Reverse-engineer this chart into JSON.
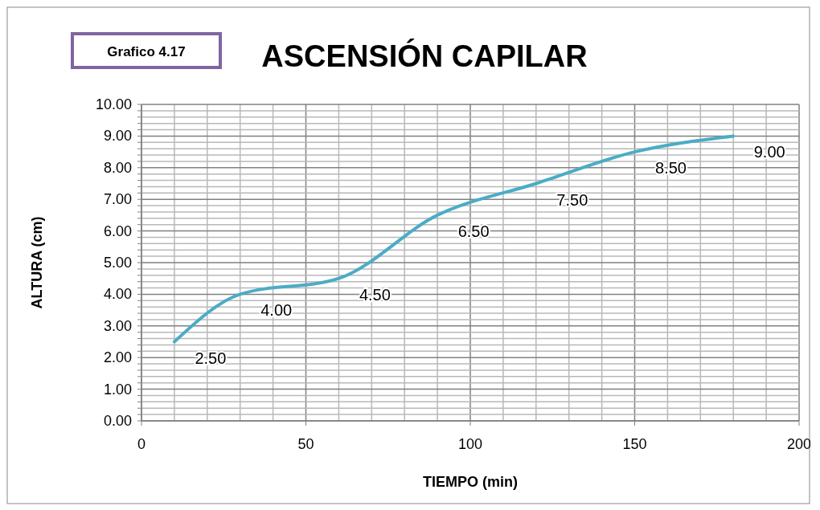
{
  "chart_data": {
    "type": "line",
    "title": "ASCENSIÓN CAPILAR",
    "xlabel": "TIEMPO (min)",
    "ylabel": "ALTURA (cm)",
    "annotations": [
      "Grafico 4.17"
    ],
    "x": [
      10,
      30,
      60,
      90,
      120,
      150,
      180
    ],
    "series": [
      {
        "color": "#4bacc6",
        "values": [
          2.5,
          4.0,
          4.5,
          6.5,
          7.5,
          8.5,
          9.0
        ]
      }
    ],
    "value_labels": [
      "2.50",
      "4.00",
      "4.50",
      "6.50",
      "7.50",
      "8.50",
      "9.00"
    ],
    "xlim": [
      0,
      200
    ],
    "xticks": [
      0,
      {
        "value": 10,
        "label": null
      },
      {
        "value": 20,
        "label": null
      },
      {
        "value": 30,
        "label": null
      },
      {
        "value": 40,
        "label": null
      },
      50,
      {
        "value": 60,
        "label": null
      },
      {
        "value": 70,
        "label": null
      },
      {
        "value": 80,
        "label": null
      },
      {
        "value": 90,
        "label": null
      },
      100,
      {
        "value": 110,
        "label": null
      },
      {
        "value": 120,
        "label": null
      },
      {
        "value": 130,
        "label": null
      },
      {
        "value": 140,
        "label": null
      },
      150,
      {
        "value": 160,
        "label": null
      },
      {
        "value": 170,
        "label": null
      },
      {
        "value": 180,
        "label": null
      },
      {
        "value": 190,
        "label": null
      },
      200
    ],
    "ylim": [
      0,
      10
    ],
    "yticks": [
      {
        "value": 0,
        "label": "0.00"
      },
      {
        "value": 0.2,
        "label": null
      },
      {
        "value": 0.4,
        "label": null
      },
      {
        "value": 0.6,
        "label": null
      },
      {
        "value": 0.8,
        "label": null
      },
      {
        "value": 1,
        "label": "1.00"
      },
      {
        "value": 1.2,
        "label": null
      },
      {
        "value": 1.4,
        "label": null
      },
      {
        "value": 1.6,
        "label": null
      },
      {
        "value": 1.8,
        "label": null
      },
      {
        "value": 2,
        "label": "2.00"
      },
      {
        "value": 2.2,
        "label": null
      },
      {
        "value": 2.4,
        "label": null
      },
      {
        "value": 2.6,
        "label": null
      },
      {
        "value": 2.8,
        "label": null
      },
      {
        "value": 3,
        "label": "3.00"
      },
      {
        "value": 3.2,
        "label": null
      },
      {
        "value": 3.4,
        "label": null
      },
      {
        "value": 3.6,
        "label": null
      },
      {
        "value": 3.8,
        "label": null
      },
      {
        "value": 4,
        "label": "4.00"
      },
      {
        "value": 4.2,
        "label": null
      },
      {
        "value": 4.4,
        "label": null
      },
      {
        "value": 4.6,
        "label": null
      },
      {
        "value": 4.8,
        "label": null
      },
      {
        "value": 5,
        "label": "5.00"
      },
      {
        "value": 5.2,
        "label": null
      },
      {
        "value": 5.4,
        "label": null
      },
      {
        "value": 5.6,
        "label": null
      },
      {
        "value": 5.8,
        "label": null
      },
      {
        "value": 6,
        "label": "6.00"
      },
      {
        "value": 6.2,
        "label": null
      },
      {
        "value": 6.4,
        "label": null
      },
      {
        "value": 6.6,
        "label": null
      },
      {
        "value": 6.8,
        "label": null
      },
      {
        "value": 7,
        "label": "7.00"
      },
      {
        "value": 7.2,
        "label": null
      },
      {
        "value": 7.4,
        "label": null
      },
      {
        "value": 7.6,
        "label": null
      },
      {
        "value": 7.8,
        "label": null
      },
      {
        "value": 8,
        "label": "8.00"
      },
      {
        "value": 8.2,
        "label": null
      },
      {
        "value": 8.4,
        "label": null
      },
      {
        "value": 8.6,
        "label": null
      },
      {
        "value": 8.8,
        "label": null
      },
      {
        "value": 9,
        "label": "9.00"
      },
      {
        "value": 9.2,
        "label": null
      },
      {
        "value": 9.4,
        "label": null
      },
      {
        "value": 9.6,
        "label": null
      },
      {
        "value": 9.8,
        "label": null
      },
      {
        "value": 10,
        "label": "10.00"
      }
    ],
    "grid": true,
    "marker": "none",
    "line_style": "solid"
  }
}
